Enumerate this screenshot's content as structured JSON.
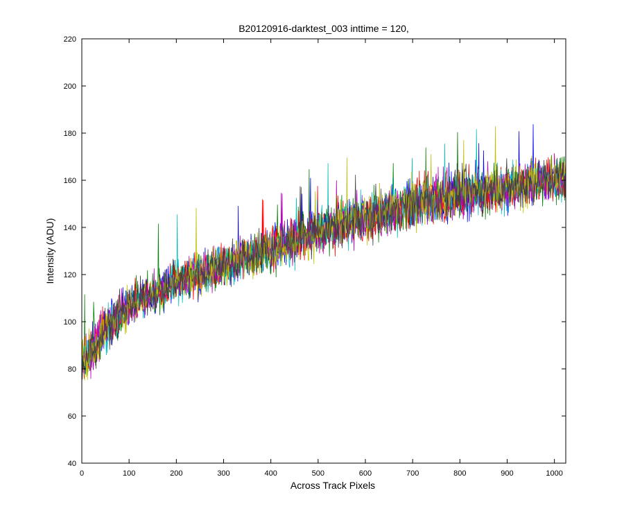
{
  "chart_data": {
    "type": "line",
    "title": "B20120916-darktest_003 inttime = 120,",
    "xlabel": "Across Track Pixels",
    "ylabel": "Intensity (ADU)",
    "xlim": [
      0,
      1024
    ],
    "ylim": [
      40,
      220
    ],
    "xticks": [
      0,
      100,
      200,
      300,
      400,
      500,
      600,
      700,
      800,
      900,
      1000
    ],
    "yticks": [
      40,
      60,
      80,
      100,
      120,
      140,
      160,
      180,
      200,
      220
    ],
    "grid": false,
    "legend": "none",
    "series_colors": [
      "#0000ff",
      "#008000",
      "#ff0000",
      "#00bfbf",
      "#bf00bf",
      "#bfbf00",
      "#404040"
    ],
    "trend": {
      "description": "noisy overlaid traces rising from ~85 to ~160 ADU",
      "x": [
        0,
        50,
        100,
        200,
        300,
        400,
        500,
        600,
        700,
        800,
        900,
        1024
      ],
      "mean": [
        82,
        97,
        107,
        117,
        124,
        131,
        138,
        144,
        150,
        154,
        157,
        162
      ],
      "noise_amplitude": [
        14,
        12,
        11,
        11,
        11,
        12,
        12,
        12,
        13,
        13,
        13,
        13
      ]
    },
    "num_series": 7
  }
}
